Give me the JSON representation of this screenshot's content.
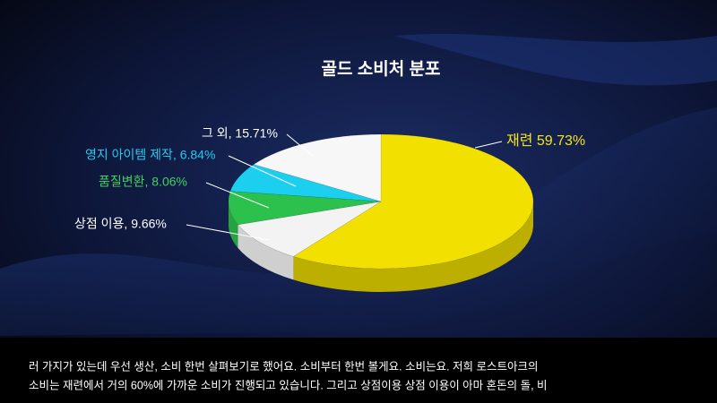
{
  "chart_data": {
    "type": "pie3d",
    "title": "골드 소비처 분포",
    "values": [
      59.73,
      9.66,
      8.06,
      6.84,
      15.71
    ],
    "value_labels": [
      "재련 59.73%",
      "상점 이용, 9.66%",
      "품질변환, 8.06%",
      "영지 아이템 제작, 6.84%",
      "그 외, 15.71%"
    ],
    "colors": [
      "#f2e000",
      "#f3f3f3",
      "#2cc04c",
      "#1ccfee",
      "#f7f7f7"
    ],
    "label_colors": [
      "#f5e41a",
      "#ffffff",
      "#3fd063",
      "#27c9f0",
      "#ffffff"
    ]
  },
  "caption": [
    "러 가지가 있는데 우선 생산, 소비 한번 살펴보기로 했어요. 소비부터 한번 볼게요. 소비는요. 저희 로스트아크의",
    "소비는 재련에서 거의 60%에 가까운 소비가 진행되고 있습니다. 그리고 상점이용 상점 이용이 아마 혼돈의 돌, 비"
  ]
}
